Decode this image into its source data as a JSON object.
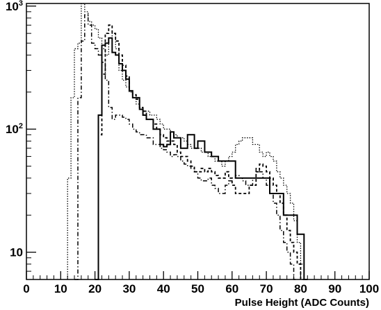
{
  "chart_data": {
    "type": "line",
    "title": "",
    "xlabel": "Pulse Height (ADC Counts)",
    "ylabel": "",
    "xlim": [
      0,
      100
    ],
    "ylim": [
      6,
      1050
    ],
    "yscale": "log",
    "grid": false,
    "x_ticks": [
      0,
      10,
      20,
      30,
      40,
      50,
      60,
      70,
      80,
      90,
      100
    ],
    "y_ticks": [
      {
        "value": 10,
        "base": "10",
        "exp": ""
      },
      {
        "value": 100,
        "base": "10",
        "exp": "2"
      },
      {
        "value": 1000,
        "base": "10",
        "exp": "3"
      }
    ],
    "bin_width": 1,
    "series": [
      {
        "style": "solid",
        "x_start": 20,
        "values": [
          6,
          130,
          480,
          500,
          550,
          420,
          400,
          340,
          300,
          255,
          205,
          180,
          180,
          145,
          130,
          120,
          120,
          100,
          100,
          75,
          72,
          75,
          95,
          85,
          85,
          70,
          70,
          90,
          90,
          70,
          80,
          80,
          65,
          65,
          60,
          60,
          55,
          55,
          55,
          55,
          55,
          40,
          40,
          40,
          40,
          40,
          40,
          40,
          40,
          40,
          40,
          30,
          30,
          30,
          30,
          20,
          20,
          20,
          20,
          14,
          14,
          6
        ]
      },
      {
        "style": "dashed",
        "x_start": 20,
        "values": [
          6,
          90,
          280,
          600,
          700,
          600,
          520,
          400,
          330,
          270,
          205,
          190,
          175,
          150,
          140,
          120,
          120,
          110,
          100,
          90,
          85,
          80,
          80,
          75,
          65,
          60,
          60,
          55,
          50,
          45,
          45,
          48,
          45,
          48,
          45,
          42,
          40,
          40,
          45,
          40,
          35,
          30,
          30,
          30,
          30,
          35,
          35,
          45,
          52,
          50,
          45,
          40,
          35,
          30,
          25,
          20,
          15,
          12,
          10,
          8,
          6
        ]
      },
      {
        "style": "dotted",
        "x_start": 12,
        "values": [
          40,
          180,
          450,
          500,
          1050,
          900,
          750,
          700,
          650,
          550,
          450,
          400,
          550,
          600,
          450,
          300,
          250,
          220,
          200,
          180,
          160,
          150,
          140,
          140,
          130,
          130,
          120,
          110,
          100,
          100,
          95,
          90,
          85,
          85,
          80,
          75,
          70,
          70,
          70,
          65,
          65,
          60,
          60,
          55,
          55,
          50,
          55,
          60,
          65,
          75,
          80,
          85,
          85,
          85,
          75,
          75,
          65,
          60,
          65,
          60,
          55,
          45,
          40,
          35,
          30,
          25,
          18,
          12,
          8,
          6
        ]
      },
      {
        "style": "dashdot",
        "x_start": 14,
        "values": [
          6,
          180,
          520,
          850,
          700,
          500,
          450,
          400,
          350,
          250,
          150,
          120,
          130,
          130,
          125,
          120,
          110,
          100,
          95,
          90,
          90,
          85,
          85,
          75,
          75,
          70,
          68,
          65,
          60,
          62,
          60,
          55,
          52,
          50,
          48,
          45,
          40,
          38,
          38,
          40,
          35,
          33,
          30,
          30,
          35,
          38,
          40,
          42,
          40,
          38,
          35,
          35,
          40,
          48,
          45,
          40,
          35,
          30,
          25,
          20,
          15,
          12,
          10,
          8,
          6
        ]
      }
    ]
  }
}
